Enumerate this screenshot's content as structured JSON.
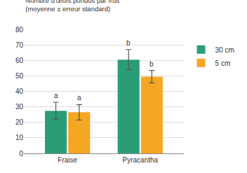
{
  "chart_data": {
    "type": "bar",
    "y_label": "Nombre d'œufs pondus par fruit\n(moyenne ± erreur standard)",
    "categories": [
      "Fraise",
      "Pyracantha"
    ],
    "series": [
      {
        "name": "30 cm",
        "color": "#2a9d78",
        "values": [
          27.5,
          60.5
        ],
        "errors": [
          5.5,
          6.5
        ],
        "annotations": [
          "a",
          "b"
        ]
      },
      {
        "name": "5 cm",
        "color": "#f5a623",
        "values": [
          26.5,
          49.5
        ],
        "errors": [
          5,
          4
        ],
        "annotations": [
          "a",
          "b"
        ]
      }
    ],
    "ylim": [
      0,
      80
    ],
    "yticks": [
      0,
      10,
      20,
      30,
      40,
      50,
      60,
      70,
      80
    ],
    "grid": true,
    "legend": "right"
  }
}
